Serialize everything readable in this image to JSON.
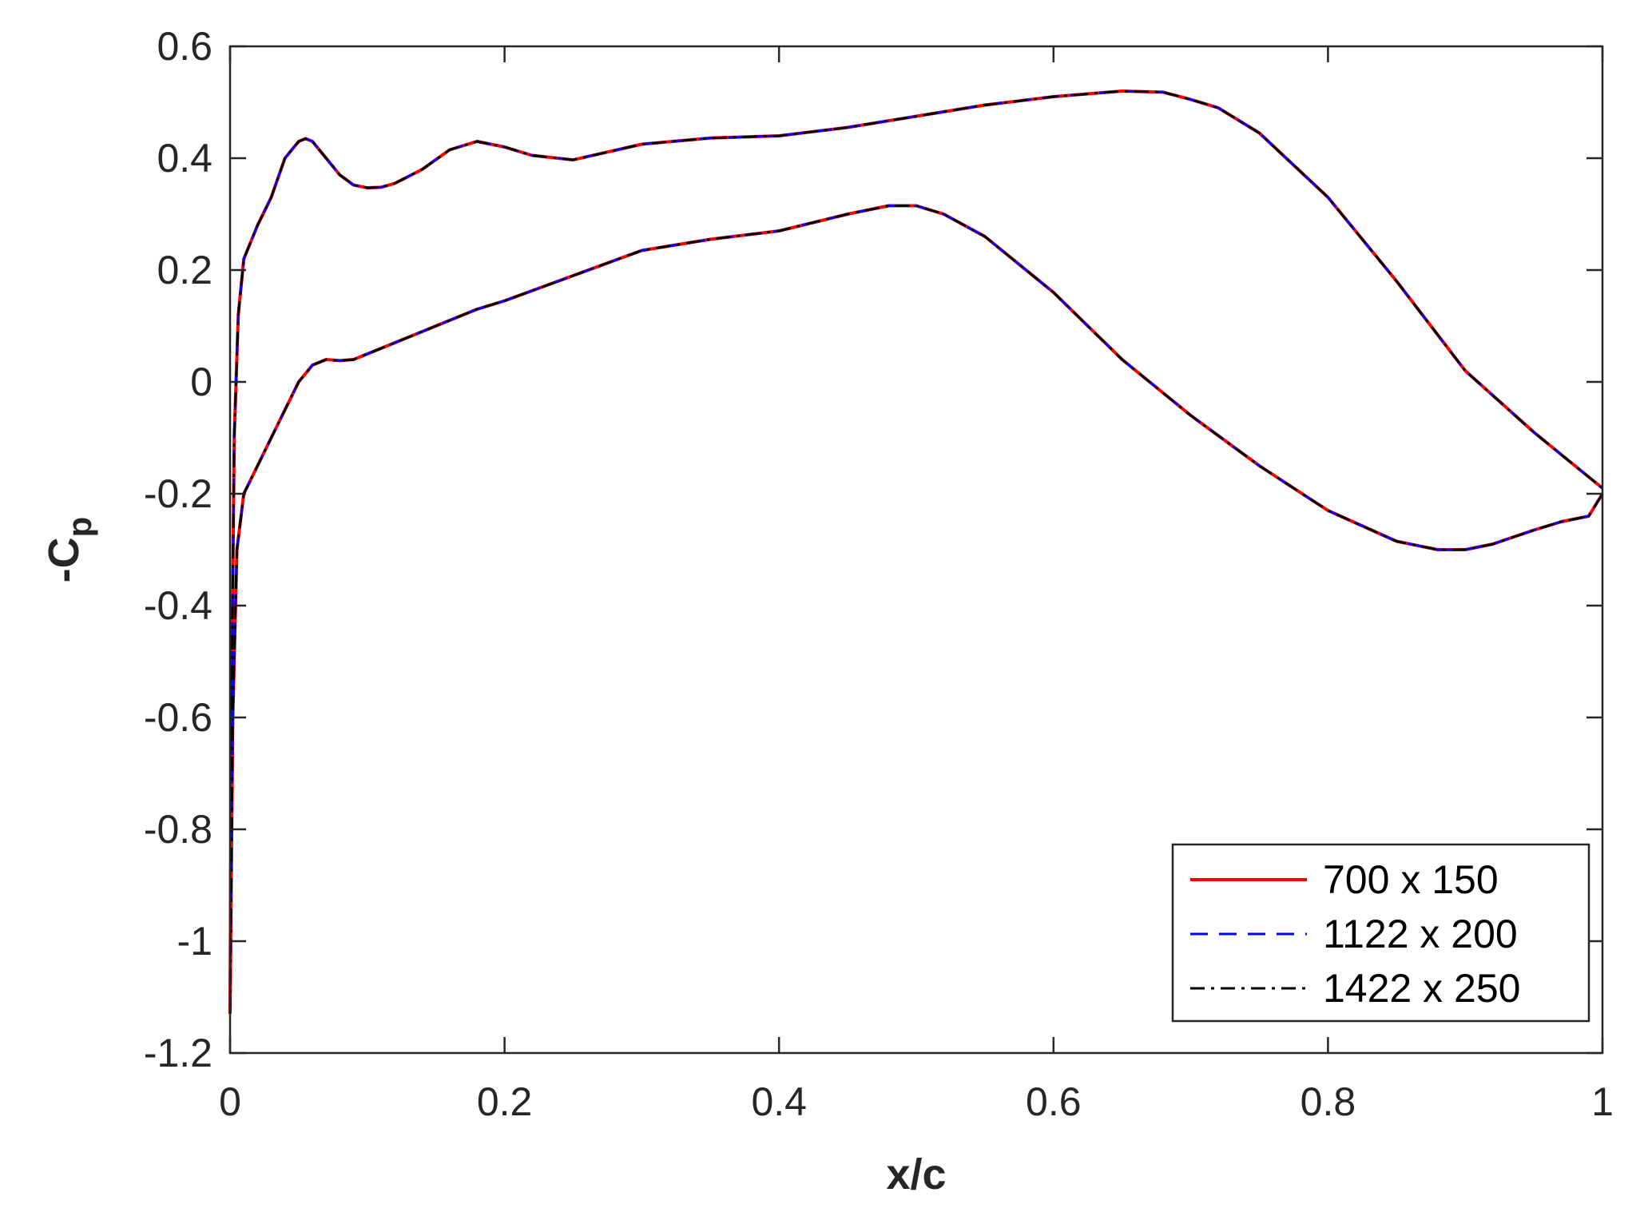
{
  "chart_data": {
    "type": "line",
    "xlabel": "x/c",
    "ylabel": {
      "main": "-C",
      "sub": "p"
    },
    "xlim": [
      0,
      1
    ],
    "ylim": [
      -1.2,
      0.6
    ],
    "xticks": [
      0,
      0.2,
      0.4,
      0.6,
      0.8,
      1
    ],
    "xtick_labels": [
      "0",
      "0.2",
      "0.4",
      "0.6",
      "0.8",
      "1"
    ],
    "yticks": [
      -1.2,
      -1,
      -0.8,
      -0.6,
      -0.4,
      -0.2,
      0,
      0.2,
      0.4,
      0.6
    ],
    "ytick_labels": [
      "-1.2",
      "-1",
      "-0.8",
      "-0.6",
      "-0.4",
      "-0.2",
      "0",
      "0.2",
      "0.4",
      "0.6"
    ],
    "grid": false,
    "legend_position": "bottom-right",
    "series": [
      {
        "name": "700 x 150",
        "color": "#ff0000",
        "dash": "solid"
      },
      {
        "name": "1122  x 200",
        "color": "#0000ff",
        "dash": "dashed"
      },
      {
        "name": "1422 x 250",
        "color": "#000000",
        "dash": "dashdot"
      }
    ],
    "curves": {
      "upper": {
        "x": [
          0,
          0.001,
          0.003,
          0.006,
          0.01,
          0.02,
          0.03,
          0.04,
          0.05,
          0.055,
          0.06,
          0.07,
          0.08,
          0.09,
          0.1,
          0.11,
          0.12,
          0.14,
          0.16,
          0.18,
          0.2,
          0.22,
          0.25,
          0.3,
          0.35,
          0.4,
          0.45,
          0.5,
          0.55,
          0.6,
          0.65,
          0.68,
          0.7,
          0.72,
          0.75,
          0.8,
          0.85,
          0.9,
          0.95,
          0.98,
          0.99,
          1.0
        ],
        "y": [
          -1.13,
          -0.6,
          -0.1,
          0.12,
          0.22,
          0.28,
          0.33,
          0.4,
          0.43,
          0.435,
          0.43,
          0.4,
          0.37,
          0.352,
          0.347,
          0.348,
          0.355,
          0.38,
          0.415,
          0.43,
          0.42,
          0.405,
          0.397,
          0.425,
          0.436,
          0.44,
          0.455,
          0.475,
          0.495,
          0.51,
          0.52,
          0.518,
          0.505,
          0.49,
          0.445,
          0.33,
          0.18,
          0.02,
          -0.09,
          -0.15,
          -0.17,
          -0.19
        ]
      },
      "lower": {
        "x": [
          0,
          0.002,
          0.005,
          0.01,
          0.02,
          0.03,
          0.04,
          0.05,
          0.06,
          0.07,
          0.08,
          0.09,
          0.1,
          0.12,
          0.15,
          0.18,
          0.2,
          0.25,
          0.3,
          0.35,
          0.4,
          0.45,
          0.48,
          0.5,
          0.52,
          0.55,
          0.6,
          0.65,
          0.7,
          0.75,
          0.8,
          0.85,
          0.88,
          0.9,
          0.92,
          0.95,
          0.97,
          0.99,
          1.0
        ],
        "y": [
          -1.13,
          -0.6,
          -0.3,
          -0.2,
          -0.15,
          -0.1,
          -0.05,
          0.0,
          0.03,
          0.04,
          0.038,
          0.04,
          0.05,
          0.07,
          0.1,
          0.13,
          0.145,
          0.19,
          0.235,
          0.255,
          0.27,
          0.3,
          0.315,
          0.315,
          0.3,
          0.26,
          0.16,
          0.04,
          -0.06,
          -0.15,
          -0.23,
          -0.285,
          -0.3,
          -0.3,
          -0.29,
          -0.265,
          -0.25,
          -0.24,
          -0.2
        ]
      }
    }
  }
}
